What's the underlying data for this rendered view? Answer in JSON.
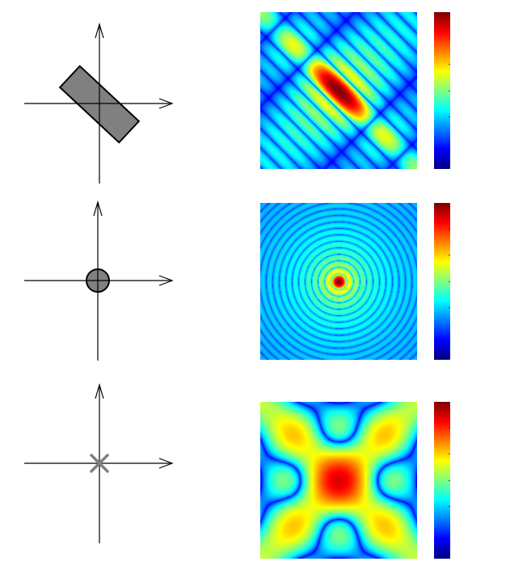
{
  "figure": {
    "rows": [
      {
        "shape": "rotated-rectangle",
        "shape_fill": "#808080",
        "pattern": "rectangle-diffraction",
        "colormap": "jet"
      },
      {
        "shape": "circular-disk",
        "shape_fill": "#808080",
        "pattern": "airy-rings",
        "colormap": "jet"
      },
      {
        "shape": "x-cross",
        "shape_fill": "#808080",
        "pattern": "cross-diffraction",
        "colormap": "jet"
      }
    ]
  }
}
